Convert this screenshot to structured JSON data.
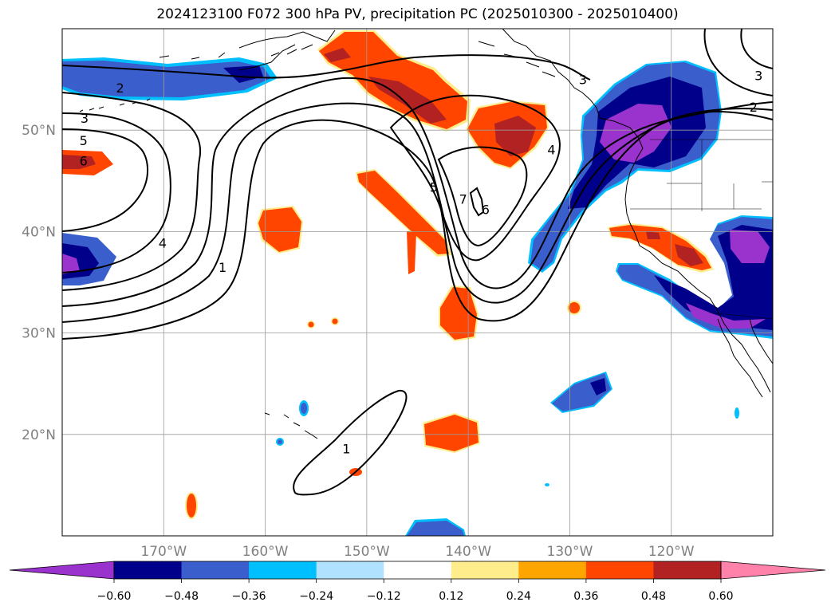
{
  "title": "2024123100 F072 300 hPa PV, precipitation PC (2025010300 - 2025010400)",
  "map": {
    "lon_range": [
      -180,
      -110
    ],
    "lat_range": [
      10,
      60
    ],
    "gridlines": true,
    "lon_ticks": [
      {
        "lon": -170,
        "label": "170°W"
      },
      {
        "lon": -160,
        "label": "160°W"
      },
      {
        "lon": -150,
        "label": "150°W"
      },
      {
        "lon": -140,
        "label": "140°W"
      },
      {
        "lon": -130,
        "label": "130°W"
      },
      {
        "lon": -120,
        "label": "120°W"
      }
    ],
    "lat_ticks": [
      {
        "lat": 50,
        "label": "50°N"
      },
      {
        "lat": 40,
        "label": "40°N"
      },
      {
        "lat": 30,
        "label": "30°N"
      },
      {
        "lat": 20,
        "label": "20°N"
      }
    ],
    "contour_labels": [
      {
        "text": "2",
        "lon": -174.3,
        "lat": 54.2
      },
      {
        "text": "3",
        "lon": -177.8,
        "lat": 51.2
      },
      {
        "text": "5",
        "lon": -177.9,
        "lat": 49.0
      },
      {
        "text": "6",
        "lon": -177.9,
        "lat": 47.0
      },
      {
        "text": "4",
        "lon": -170.1,
        "lat": 38.9
      },
      {
        "text": "1",
        "lon": -164.2,
        "lat": 36.5
      },
      {
        "text": "5",
        "lon": -143.4,
        "lat": 44.4
      },
      {
        "text": "7",
        "lon": -140.5,
        "lat": 43.2
      },
      {
        "text": "6",
        "lon": -138.3,
        "lat": 42.2
      },
      {
        "text": "4",
        "lon": -131.8,
        "lat": 48.1
      },
      {
        "text": "3",
        "lon": -128.7,
        "lat": 55.0
      },
      {
        "text": "3",
        "lon": -111.4,
        "lat": 55.4
      },
      {
        "text": "2",
        "lon": -111.9,
        "lat": 52.3
      },
      {
        "text": "1",
        "lon": -152.0,
        "lat": 18.6
      }
    ]
  },
  "colorbar": {
    "levels": [
      -0.6,
      -0.48,
      -0.36,
      -0.24,
      -0.12,
      0.12,
      0.24,
      0.36,
      0.48,
      0.6
    ],
    "tick_labels": [
      "−0.60",
      "−0.48",
      "−0.36",
      "−0.24",
      "−0.12",
      "0.12",
      "0.24",
      "0.36",
      "0.48",
      "0.60"
    ],
    "colors": [
      "#9a32cd",
      "#00008b",
      "#3a5fcd",
      "#00bfff",
      "#b0e2ff",
      "#ffffff",
      "#ffec8b",
      "#ffa500",
      "#ff4500",
      "#b22222",
      "#ff82ab"
    ],
    "extend": "both"
  }
}
